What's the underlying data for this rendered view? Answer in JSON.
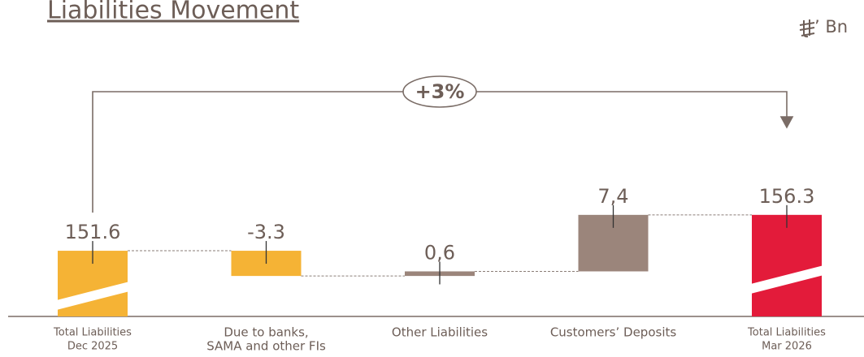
{
  "chart_data": {
    "type": "waterfall",
    "title": "Liabilities Movement",
    "unit": "’ Bn",
    "categories": [
      [
        "Total Liabilities",
        "Dec 2025"
      ],
      [
        "Due to banks,",
        "SAMA and other FIs"
      ],
      [
        "Other Liabilities"
      ],
      [
        "Customers’ Deposits"
      ],
      [
        "Total Liabilities",
        "Mar 2026"
      ]
    ],
    "values": [
      151.6,
      -3.3,
      0.6,
      7.4,
      156.3
    ],
    "value_labels": [
      "151.6",
      "-3.3",
      "0,6",
      "7,4",
      "156.3"
    ],
    "totals": [
      true,
      false,
      false,
      false,
      true
    ],
    "colors": [
      "#f5b335",
      "#f5b335",
      "#9b857b",
      "#9b857b",
      "#e31b3a"
    ],
    "ylim": [
      143,
      160
    ],
    "annotation": "+3%"
  }
}
